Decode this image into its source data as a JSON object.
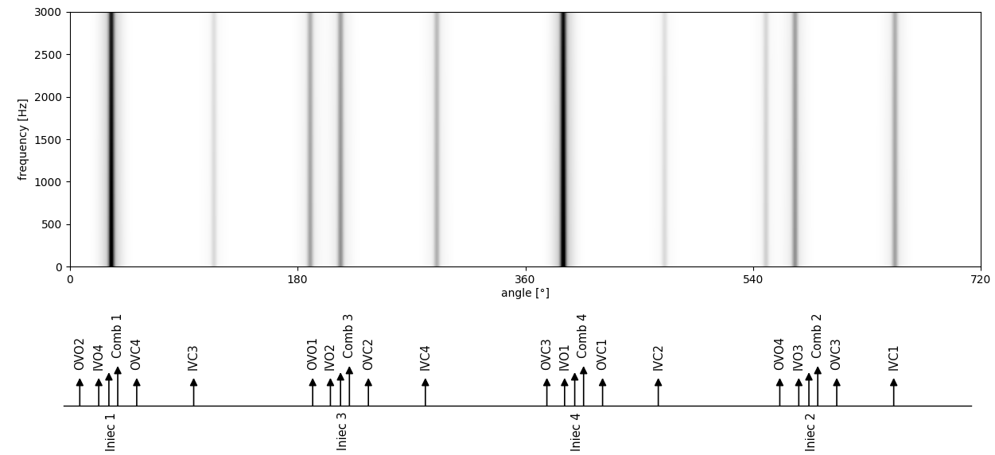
{
  "chart_data": {
    "type": "spectrogram",
    "x_label": "angle [°]",
    "y_label": "frequency [Hz]",
    "xlim": [
      0,
      720
    ],
    "ylim": [
      0,
      3000
    ],
    "xticks": [
      0,
      180,
      360,
      540,
      720
    ],
    "yticks": [
      0,
      500,
      1000,
      1500,
      2000,
      2500,
      3000
    ],
    "color": "gray_r",
    "bands": [
      {
        "angle": 33,
        "intensity": 0.85
      },
      {
        "angle": 114,
        "intensity": 0.12
      },
      {
        "angle": 190,
        "intensity": 0.3
      },
      {
        "angle": 214,
        "intensity": 0.35
      },
      {
        "angle": 290,
        "intensity": 0.25
      },
      {
        "angle": 390,
        "intensity": 0.9
      },
      {
        "angle": 470,
        "intensity": 0.12
      },
      {
        "angle": 550,
        "intensity": 0.15
      },
      {
        "angle": 573,
        "intensity": 0.35
      },
      {
        "angle": 652,
        "intensity": 0.3
      }
    ],
    "zlim": [
      0,
      1
    ],
    "events": [
      {
        "label": "OVO2",
        "angle": 8,
        "kind": "valve"
      },
      {
        "label": "IVO4",
        "angle": 23,
        "kind": "valve"
      },
      {
        "label": "Iniec 1",
        "angle": 31,
        "kind": "injection"
      },
      {
        "label": "Comb 1",
        "angle": 38,
        "kind": "combustion"
      },
      {
        "label": "OVC4",
        "angle": 53,
        "kind": "valve"
      },
      {
        "label": "IVC3",
        "angle": 98,
        "kind": "valve"
      },
      {
        "label": "OVO1",
        "angle": 192,
        "kind": "valve"
      },
      {
        "label": "IVO2",
        "angle": 206,
        "kind": "valve"
      },
      {
        "label": "Iniec 3",
        "angle": 214,
        "kind": "injection"
      },
      {
        "label": "Comb 3",
        "angle": 221,
        "kind": "combustion"
      },
      {
        "label": "OVC2",
        "angle": 236,
        "kind": "valve"
      },
      {
        "label": "IVC4",
        "angle": 281,
        "kind": "valve"
      },
      {
        "label": "OVC3",
        "angle": 377,
        "kind": "valve"
      },
      {
        "label": "IVO1",
        "angle": 391,
        "kind": "valve"
      },
      {
        "label": "Iniec 4",
        "angle": 399,
        "kind": "injection"
      },
      {
        "label": "Comb 4",
        "angle": 406,
        "kind": "combustion"
      },
      {
        "label": "OVC1",
        "angle": 421,
        "kind": "valve"
      },
      {
        "label": "IVC2",
        "angle": 465,
        "kind": "valve"
      },
      {
        "label": "OVO4",
        "angle": 561,
        "kind": "valve"
      },
      {
        "label": "IVO3",
        "angle": 576,
        "kind": "valve"
      },
      {
        "label": "Iniec 2",
        "angle": 584,
        "kind": "injection"
      },
      {
        "label": "Comb 2",
        "angle": 591,
        "kind": "combustion"
      },
      {
        "label": "OVC3",
        "angle": 606,
        "kind": "valve"
      },
      {
        "label": "IVC1",
        "angle": 651,
        "kind": "valve"
      }
    ]
  }
}
